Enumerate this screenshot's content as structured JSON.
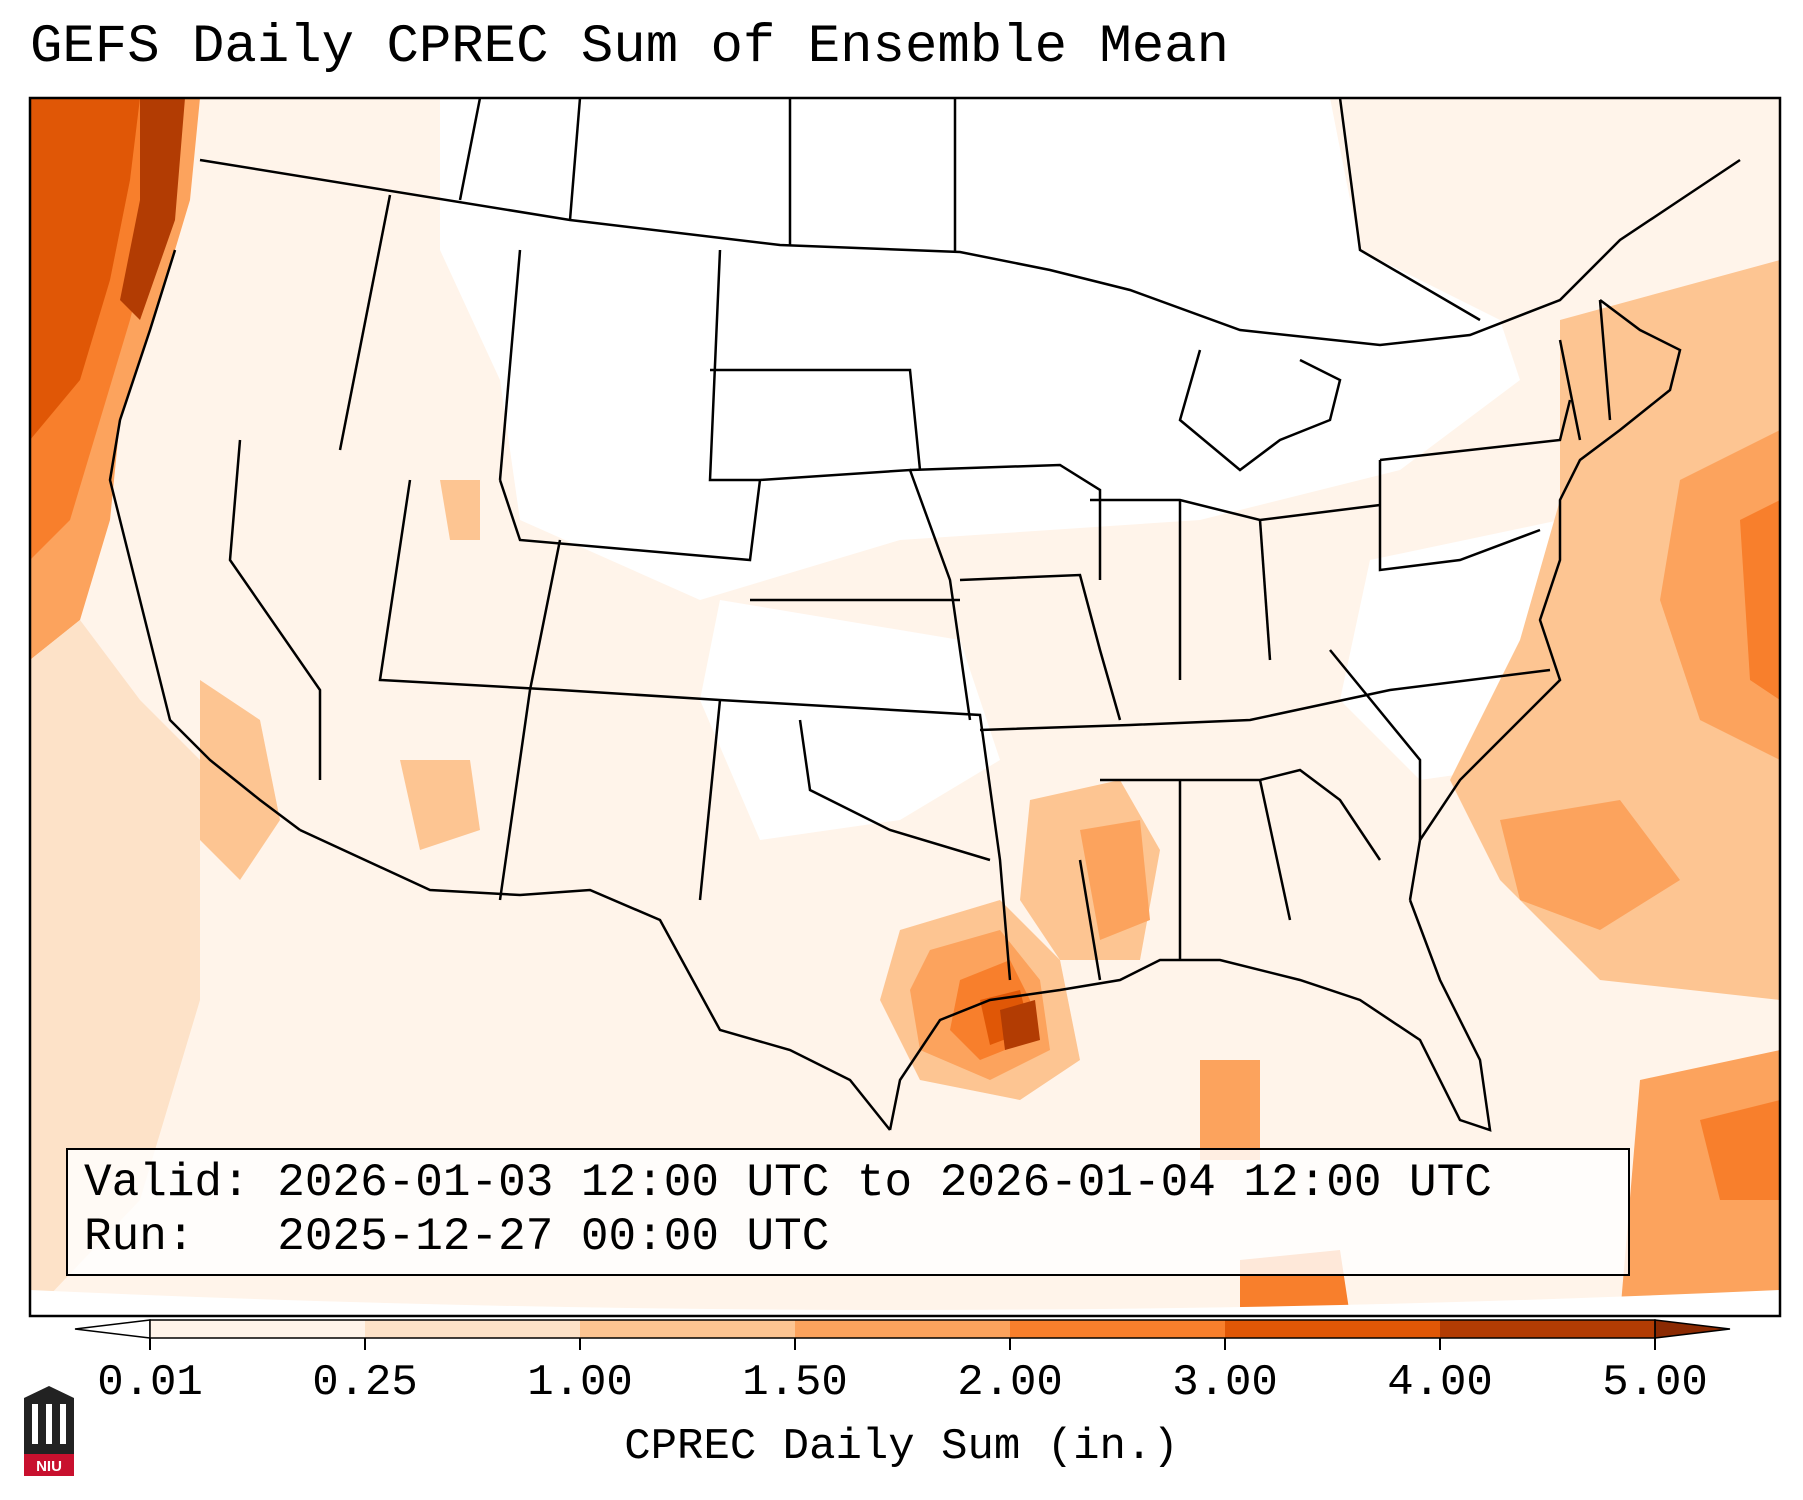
{
  "title": "GEFS Daily CPREC Sum of Ensemble Mean",
  "valid_label": "Valid:",
  "valid_value": "2026-01-03 12:00 UTC to 2026-01-04 12:00 UTC",
  "run_label": "Run:",
  "run_value": "2025-12-27 00:00 UTC",
  "colorbar": {
    "label": "CPREC Daily Sum (in.)",
    "ticks": [
      "0.01",
      "0.25",
      "1.00",
      "1.50",
      "2.00",
      "3.00",
      "4.00",
      "5.00"
    ],
    "colors": [
      "#fff4ea",
      "#fde2c8",
      "#fdc592",
      "#fca35d",
      "#f87f2c",
      "#e05706",
      "#b23c03"
    ],
    "extend": "both"
  },
  "logo": {
    "text": "NIU",
    "color": "#c8102e"
  },
  "map_features": [
    "heaviest precipitation centered near southeast Texas coast (dark red)",
    "orange band along Pacific Northwest coast",
    "orange area off Atlantic coast east of Carolinas and New England",
    "orange area over Louisiana and Mississippi",
    "light shading over much of western United States"
  ]
}
